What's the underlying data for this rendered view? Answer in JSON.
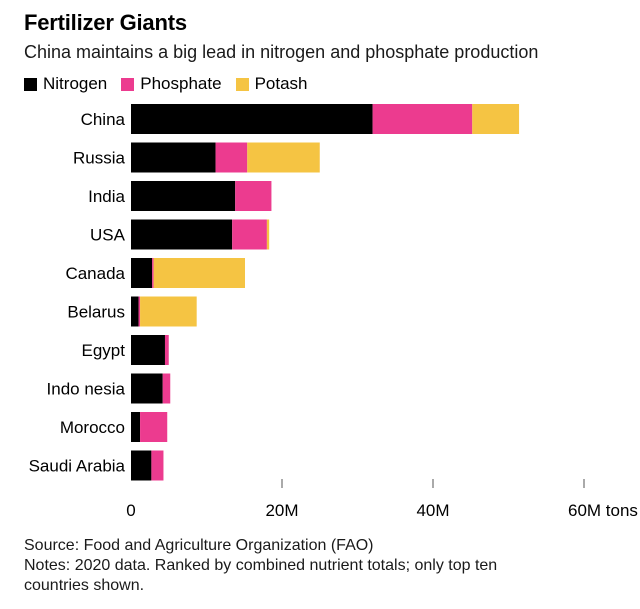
{
  "title": "Fertilizer Giants",
  "subtitle": "China maintains a big lead in nitrogen and phosphate production",
  "colors": {
    "Nitrogen": "#000000",
    "Phosphate": "#ec3b8f",
    "Potash": "#f5c443",
    "axis": "#555555"
  },
  "footer": {
    "source": "Source: Food and Agriculture Organization (FAO)",
    "notes_line1": "Notes: 2020 data. Ranked by combined nutrient totals; only top ten",
    "notes_line2": "countries shown."
  },
  "chart_data": {
    "type": "bar",
    "orientation": "horizontal",
    "stacked": true,
    "title": "Fertilizer Giants",
    "subtitle": "China maintains a big lead in nitrogen and phosphate production",
    "categories": [
      "China",
      "Russia",
      "India",
      "USA",
      "Canada",
      "Belarus",
      "Egypt",
      "Indo nesia",
      "Morocco",
      "Saudi Arabia"
    ],
    "series": [
      {
        "name": "Nitrogen",
        "values": [
          32.0,
          11.2,
          13.8,
          13.4,
          2.8,
          1.0,
          4.5,
          4.2,
          1.2,
          2.7
        ]
      },
      {
        "name": "Phosphate",
        "values": [
          13.2,
          4.2,
          4.8,
          4.6,
          0.2,
          0.2,
          0.5,
          1.0,
          3.6,
          1.6
        ]
      },
      {
        "name": "Potash",
        "values": [
          6.2,
          9.6,
          0.0,
          0.3,
          12.1,
          7.5,
          0.0,
          0.0,
          0.0,
          0.0
        ]
      }
    ],
    "xlim": [
      0,
      60
    ],
    "ticks": [
      {
        "value": 0,
        "label": "0"
      },
      {
        "value": 20,
        "label": "20M"
      },
      {
        "value": 40,
        "label": "40M"
      },
      {
        "value": 60,
        "label": "60M tons"
      }
    ],
    "legend": "top-left",
    "grid": false
  }
}
